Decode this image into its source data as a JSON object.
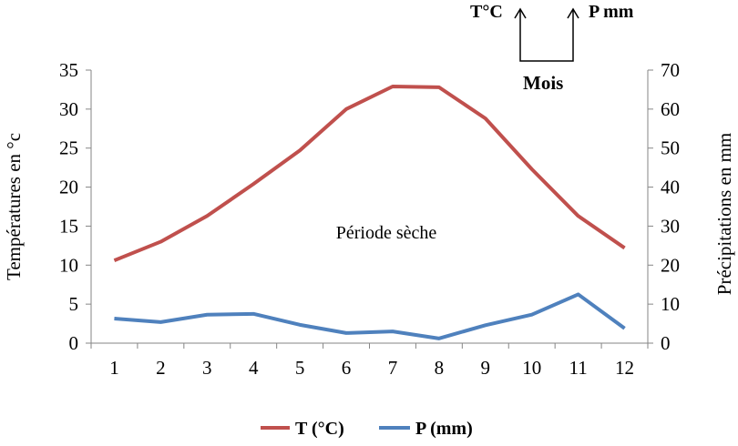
{
  "chart_data": {
    "type": "line",
    "categories": [
      "1",
      "2",
      "3",
      "4",
      "5",
      "6",
      "7",
      "8",
      "9",
      "10",
      "11",
      "12"
    ],
    "series": [
      {
        "name": "T (°C)",
        "axis": "left",
        "color": "#c0504d",
        "values": [
          10.6,
          13.0,
          16.3,
          20.4,
          24.7,
          30.0,
          32.9,
          32.8,
          28.8,
          22.3,
          16.3,
          12.2
        ]
      },
      {
        "name": "P (mm)",
        "axis": "right",
        "color": "#4f81bd",
        "values": [
          6.3,
          5.4,
          7.3,
          7.5,
          4.7,
          2.6,
          3.0,
          1.2,
          4.6,
          7.3,
          12.5,
          3.8
        ]
      }
    ],
    "ylabel": "Températures en °c",
    "y2label": "Précipitations  en mm",
    "ylim": [
      0,
      35
    ],
    "y2lim": [
      0,
      70
    ],
    "yticks": [
      "0",
      "5",
      "10",
      "15",
      "20",
      "25",
      "30",
      "35"
    ],
    "y2ticks": [
      "0",
      "10",
      "20",
      "30",
      "40",
      "50",
      "60",
      "70"
    ],
    "grid": false,
    "legend_placement": "bottom",
    "annotations": {
      "dry_period": "Période sèche",
      "key_left": "T°C",
      "key_right": "P mm",
      "key_bottom": "Mois"
    }
  }
}
